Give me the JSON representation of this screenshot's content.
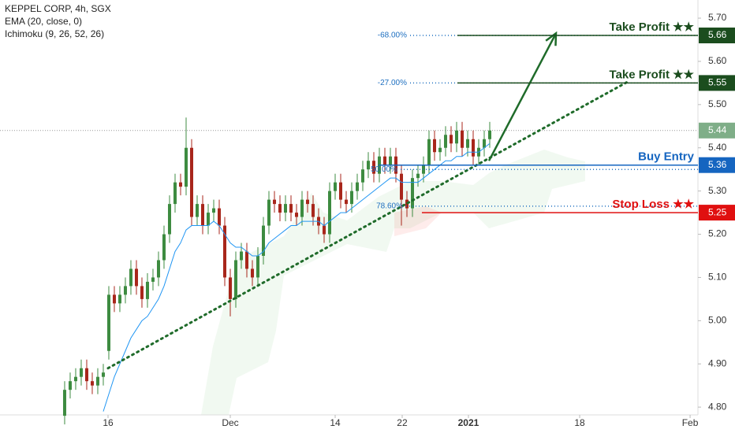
{
  "chart_data": {
    "type": "candlestick",
    "title": "KEPPEL CORP, 4h, SGX",
    "indicators": [
      "EMA (20, close, 0)",
      "Ichimoku (9, 26, 52, 26)"
    ],
    "xlim": [
      -11.71,
      114.71
    ],
    "xticks": [
      {
        "value": 7.86,
        "label": "16"
      },
      {
        "value": 30,
        "label": "Dec"
      },
      {
        "value": 49,
        "label": "14"
      },
      {
        "value": 61.14,
        "label": "22"
      },
      {
        "value": 73.14,
        "label": "2021"
      },
      {
        "value": 93.29,
        "label": "18"
      },
      {
        "value": 113.29,
        "label": "Feb"
      }
    ],
    "ylim": [
      4.782,
      5.742
    ],
    "yticks": [
      {
        "value": 4.8,
        "label": "4.80"
      },
      {
        "value": 4.9,
        "label": "4.90"
      },
      {
        "value": 5.0,
        "label": "5.00"
      },
      {
        "value": 5.1,
        "label": "5.10"
      },
      {
        "value": 5.2,
        "label": "5.20"
      },
      {
        "value": 5.3,
        "label": "5.30"
      },
      {
        "value": 5.4,
        "label": "5.40"
      },
      {
        "value": 5.5,
        "label": "5.50"
      },
      {
        "value": 5.6,
        "label": "5.60"
      },
      {
        "value": 5.7,
        "label": "5.70"
      }
    ],
    "candles": {
      "up_color": "#3d8b40",
      "down_color": "#a8261b",
      "open": [
        4.78,
        4.84,
        4.86,
        4.87,
        4.89,
        4.86,
        4.85,
        4.87,
        4.93,
        5.06,
        5.04,
        5.06,
        5.08,
        5.12,
        5.08,
        5.05,
        5.09,
        5.1,
        5.14,
        5.2,
        5.27,
        5.32,
        5.31,
        5.4,
        5.24,
        5.27,
        5.22,
        5.25,
        5.26,
        5.22,
        5.1,
        5.05,
        5.14,
        5.16,
        5.12,
        5.1,
        5.15,
        5.22,
        5.28,
        5.27,
        5.25,
        5.27,
        5.25,
        5.24,
        5.28,
        5.27,
        5.24,
        5.22,
        5.2,
        5.3,
        5.32,
        5.28,
        5.27,
        5.3,
        5.32,
        5.35,
        5.37,
        5.34,
        5.38,
        5.36,
        5.38,
        5.34,
        5.28,
        5.26,
        5.33,
        5.34,
        5.36,
        5.42,
        5.39,
        5.4,
        5.43,
        5.41,
        5.44,
        5.4,
        5.42,
        5.38,
        5.4,
        5.42
      ],
      "high": [
        4.86,
        4.88,
        4.89,
        4.91,
        4.91,
        4.88,
        4.89,
        4.9,
        5.08,
        5.08,
        5.08,
        5.1,
        5.14,
        5.14,
        5.1,
        5.11,
        5.12,
        5.16,
        5.22,
        5.29,
        5.34,
        5.34,
        5.47,
        5.42,
        5.29,
        5.29,
        5.27,
        5.28,
        5.28,
        5.24,
        5.12,
        5.16,
        5.18,
        5.18,
        5.14,
        5.17,
        5.24,
        5.3,
        5.3,
        5.29,
        5.29,
        5.29,
        5.27,
        5.3,
        5.3,
        5.29,
        5.26,
        5.24,
        5.32,
        5.34,
        5.34,
        5.3,
        5.32,
        5.34,
        5.37,
        5.39,
        5.39,
        5.4,
        5.4,
        5.4,
        5.4,
        5.36,
        5.3,
        5.35,
        5.36,
        5.38,
        5.44,
        5.44,
        5.42,
        5.45,
        5.45,
        5.46,
        5.46,
        5.44,
        5.44,
        5.42,
        5.44,
        5.46
      ],
      "low": [
        4.76,
        4.82,
        4.84,
        4.85,
        4.84,
        4.83,
        4.83,
        4.85,
        4.91,
        5.02,
        5.02,
        5.04,
        5.06,
        5.06,
        5.03,
        5.03,
        5.07,
        5.08,
        5.12,
        5.18,
        5.25,
        5.29,
        5.29,
        5.22,
        5.22,
        5.2,
        5.2,
        5.23,
        5.2,
        5.08,
        5.01,
        5.03,
        5.12,
        5.1,
        5.08,
        5.08,
        5.13,
        5.2,
        5.25,
        5.23,
        5.23,
        5.23,
        5.22,
        5.22,
        5.25,
        5.22,
        5.2,
        5.18,
        5.18,
        5.28,
        5.26,
        5.25,
        5.25,
        5.28,
        5.3,
        5.33,
        5.32,
        5.32,
        5.34,
        5.34,
        5.32,
        5.22,
        5.24,
        5.24,
        5.31,
        5.32,
        5.34,
        5.37,
        5.37,
        5.38,
        5.39,
        5.39,
        5.38,
        5.38,
        5.36,
        5.36,
        5.38,
        5.4
      ],
      "close": [
        4.84,
        4.86,
        4.87,
        4.89,
        4.86,
        4.85,
        4.87,
        4.88,
        5.06,
        5.04,
        5.06,
        5.08,
        5.12,
        5.08,
        5.05,
        5.09,
        5.1,
        5.14,
        5.2,
        5.27,
        5.32,
        5.31,
        5.4,
        5.24,
        5.27,
        5.22,
        5.25,
        5.26,
        5.22,
        5.1,
        5.05,
        5.14,
        5.16,
        5.12,
        5.1,
        5.15,
        5.22,
        5.28,
        5.27,
        5.25,
        5.27,
        5.25,
        5.24,
        5.28,
        5.27,
        5.24,
        5.22,
        5.2,
        5.3,
        5.32,
        5.28,
        5.27,
        5.3,
        5.32,
        5.35,
        5.37,
        5.34,
        5.38,
        5.36,
        5.38,
        5.34,
        5.28,
        5.26,
        5.33,
        5.34,
        5.36,
        5.42,
        5.39,
        5.4,
        5.43,
        5.41,
        5.44,
        5.4,
        5.42,
        5.38,
        5.4,
        5.42,
        5.44
      ]
    },
    "ema": {
      "color": "#2196f3",
      "values": [
        null,
        null,
        null,
        null,
        null,
        null,
        null,
        4.79,
        4.83,
        4.87,
        4.9,
        4.93,
        4.96,
        4.98,
        5.0,
        5.01,
        5.03,
        5.05,
        5.08,
        5.12,
        5.16,
        5.18,
        5.21,
        5.22,
        5.22,
        5.22,
        5.22,
        5.23,
        5.22,
        5.2,
        5.18,
        5.17,
        5.17,
        5.16,
        5.15,
        5.15,
        5.16,
        5.18,
        5.19,
        5.2,
        5.21,
        5.22,
        5.22,
        5.23,
        5.23,
        5.23,
        5.23,
        5.22,
        5.23,
        5.24,
        5.25,
        5.25,
        5.26,
        5.27,
        5.28,
        5.29,
        5.3,
        5.31,
        5.32,
        5.33,
        5.33,
        5.32,
        5.32,
        5.32,
        5.32,
        5.33,
        5.34,
        5.35,
        5.36,
        5.37,
        5.37,
        5.38,
        5.38,
        5.39,
        5.39,
        5.39,
        5.4,
        5.41
      ]
    },
    "current_price": {
      "value": 5.44,
      "color": "#7fae88"
    },
    "levels": [
      {
        "label": "Take Profit ★★",
        "value": 5.66,
        "color": "#1b4d1e",
        "from": 71.14
      },
      {
        "label": "Take Profit ★★",
        "value": 5.55,
        "color": "#1b4d1e",
        "from": 71.14
      },
      {
        "label": "Buy Entry",
        "value": 5.36,
        "color": "#1565c0",
        "from": 56.86
      },
      {
        "label": "Stop Loss ★★",
        "value": 5.25,
        "color": "#e01010",
        "from": 64.71
      }
    ],
    "fib": {
      "color": "#1e6fc0",
      "levels": [
        {
          "label": "-68.00%",
          "value": 5.66,
          "from": 62.57
        },
        {
          "label": "-27.00%",
          "value": 5.55,
          "from": 62.57
        },
        {
          "label": "50.00%",
          "value": 5.35,
          "from": 60.86
        },
        {
          "label": "78.60%",
          "value": 5.265,
          "from": 61.86
        }
      ]
    },
    "trend_line": {
      "color": "#1f6b2a",
      "start": [
        7.86,
        4.89
      ],
      "end": [
        102.29,
        5.555
      ]
    },
    "arrow": {
      "color": "#1f6b2a",
      "start": [
        76.86,
        5.37
      ],
      "end": [
        89,
        5.665
      ]
    }
  }
}
